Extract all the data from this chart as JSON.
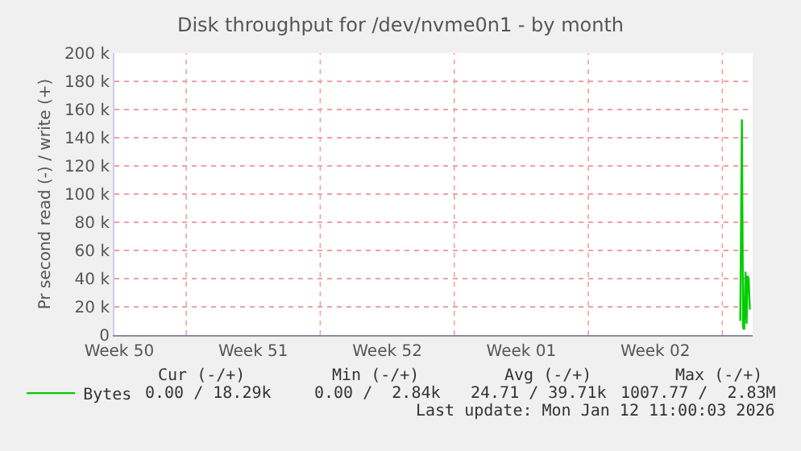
{
  "chart_data": {
    "type": "line",
    "title": "Disk throughput for /dev/nvme0n1 - by month",
    "ylabel": "Pr second read (-) / write (+)",
    "x": [
      "2026-01-11T22:30",
      "2026-01-12T00:30",
      "2026-01-12T02:00",
      "2026-01-12T03:30",
      "2026-01-12T05:00",
      "2026-01-12T06:30",
      "2026-01-12T07:30",
      "2026-01-12T09:00",
      "2026-01-12T10:30"
    ],
    "series": [
      {
        "name": "Bytes",
        "color": "#00cc00",
        "values": [
          10000,
          153000,
          5000,
          4000,
          45000,
          8000,
          42000,
          40000,
          18000
        ]
      }
    ],
    "xlim": [
      "2025-12-10T06:00",
      "2026-01-12T14:00"
    ],
    "xticks": [
      {
        "value": "2025-12-10T12:00",
        "label": "Week 50"
      },
      {
        "value": "2025-12-14",
        "label": null
      },
      {
        "value": "2025-12-17T12:00",
        "label": "Week 51"
      },
      {
        "value": "2025-12-21",
        "label": null
      },
      {
        "value": "2025-12-24T12:00",
        "label": "Week 52"
      },
      {
        "value": "2025-12-28",
        "label": null
      },
      {
        "value": "2025-12-31T12:00",
        "label": "Week 01"
      },
      {
        "value": "2026-01-04",
        "label": null
      },
      {
        "value": "2026-01-07T12:00",
        "label": "Week 02"
      },
      {
        "value": "2026-01-11",
        "label": null
      }
    ],
    "ylim": [
      0,
      200000
    ],
    "yticks": [
      0,
      {
        "value": 20000,
        "label": "20 k"
      },
      {
        "value": 40000,
        "label": "40 k"
      },
      {
        "value": 60000,
        "label": "60 k"
      },
      {
        "value": 80000,
        "label": "80 k"
      },
      {
        "value": 100000,
        "label": "100 k"
      },
      {
        "value": 120000,
        "label": "120 k"
      },
      {
        "value": 140000,
        "label": "140 k"
      },
      {
        "value": 160000,
        "label": "160 k"
      },
      {
        "value": 180000,
        "label": "180 k"
      },
      {
        "value": 200000,
        "label": "200 k"
      }
    ],
    "grid": true,
    "legend": "bottom left",
    "marker": "none",
    "line_style": "solid",
    "annotations": [
      "Cur (-/+)",
      "Min (-/+)",
      "Avg (-/+)",
      "Max (-/+)",
      "0.00 / 18.29k",
      "0.00 /  2.84k",
      "24.71 / 39.71k",
      "1007.77 /  2.83M",
      "Last update: Mon Jan 12 11:00:03 2026"
    ]
  }
}
